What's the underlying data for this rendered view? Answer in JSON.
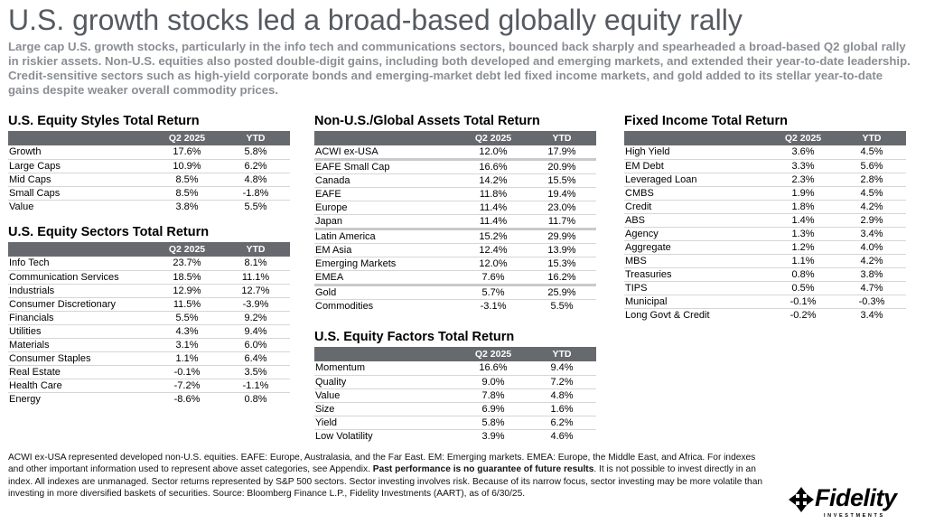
{
  "title": "U.S. growth stocks led a broad-based globally equity rally",
  "subtitle": "Large cap U.S. growth stocks, particularly in the info tech and communications sectors, bounced back sharply and spearheaded a broad-based Q2 global rally in riskier assets. Non-U.S. equities also posted double-digit gains, including both developed and emerging markets, and extended their year-to-date leadership. Credit-sensitive sectors such as high-yield corporate bonds and emerging-market debt led fixed income markets, and gold added to its stellar year-to-date gains despite weaker overall commodity prices.",
  "columns": {
    "q2": "Q2 2025",
    "ytd": "YTD"
  },
  "styles": {
    "title": "U.S. Equity Styles Total Return",
    "rows": [
      {
        "name": "Growth",
        "q2": "17.6%",
        "ytd": "5.8%"
      },
      {
        "name": "Large Caps",
        "q2": "10.9%",
        "ytd": "6.2%"
      },
      {
        "name": "Mid Caps",
        "q2": "8.5%",
        "ytd": "4.8%"
      },
      {
        "name": "Small Caps",
        "q2": "8.5%",
        "ytd": "-1.8%"
      },
      {
        "name": "Value",
        "q2": "3.8%",
        "ytd": "5.5%"
      }
    ]
  },
  "sectors": {
    "title": "U.S. Equity Sectors Total Return",
    "rows": [
      {
        "name": "Info Tech",
        "q2": "23.7%",
        "ytd": "8.1%"
      },
      {
        "name": "Communication Services",
        "q2": "18.5%",
        "ytd": "11.1%"
      },
      {
        "name": "Industrials",
        "q2": "12.9%",
        "ytd": "12.7%"
      },
      {
        "name": "Consumer Discretionary",
        "q2": "11.5%",
        "ytd": "-3.9%"
      },
      {
        "name": "Financials",
        "q2": "5.5%",
        "ytd": "9.2%"
      },
      {
        "name": "Utilities",
        "q2": "4.3%",
        "ytd": "9.4%"
      },
      {
        "name": "Materials",
        "q2": "3.1%",
        "ytd": "6.0%"
      },
      {
        "name": "Consumer Staples",
        "q2": "1.1%",
        "ytd": "6.4%"
      },
      {
        "name": "Real Estate",
        "q2": "-0.1%",
        "ytd": "3.5%"
      },
      {
        "name": "Health Care",
        "q2": "-7.2%",
        "ytd": "-1.1%"
      },
      {
        "name": "Energy",
        "q2": "-8.6%",
        "ytd": "0.8%"
      }
    ]
  },
  "global": {
    "title": "Non-U.S./Global Assets Total Return",
    "rows": [
      {
        "name": "ACWI ex-USA",
        "q2": "12.0%",
        "ytd": "17.9%",
        "sep": true
      },
      {
        "name": "EAFE Small Cap",
        "q2": "16.6%",
        "ytd": "20.9%"
      },
      {
        "name": "Canada",
        "q2": "14.2%",
        "ytd": "15.5%"
      },
      {
        "name": "EAFE",
        "q2": "11.8%",
        "ytd": "19.4%"
      },
      {
        "name": "Europe",
        "q2": "11.4%",
        "ytd": "23.0%"
      },
      {
        "name": "Japan",
        "q2": "11.4%",
        "ytd": "11.7%",
        "sep": true
      },
      {
        "name": "Latin America",
        "q2": "15.2%",
        "ytd": "29.9%"
      },
      {
        "name": "EM Asia",
        "q2": "12.4%",
        "ytd": "13.9%"
      },
      {
        "name": "Emerging Markets",
        "q2": "12.0%",
        "ytd": "15.3%"
      },
      {
        "name": "EMEA",
        "q2": "7.6%",
        "ytd": "16.2%",
        "sep": true
      },
      {
        "name": "Gold",
        "q2": "5.7%",
        "ytd": "25.9%"
      },
      {
        "name": "Commodities",
        "q2": "-3.1%",
        "ytd": "5.5%"
      }
    ]
  },
  "factors": {
    "title": "U.S. Equity Factors Total Return",
    "rows": [
      {
        "name": "Momentum",
        "q2": "16.6%",
        "ytd": "9.4%"
      },
      {
        "name": "Quality",
        "q2": "9.0%",
        "ytd": "7.2%"
      },
      {
        "name": "Value",
        "q2": "7.8%",
        "ytd": "4.8%"
      },
      {
        "name": "Size",
        "q2": "6.9%",
        "ytd": "1.6%"
      },
      {
        "name": "Yield",
        "q2": "5.8%",
        "ytd": "6.2%"
      },
      {
        "name": "Low Volatility",
        "q2": "3.9%",
        "ytd": "4.6%"
      }
    ]
  },
  "fixed": {
    "title": "Fixed Income Total Return",
    "rows": [
      {
        "name": "High Yield",
        "q2": "3.6%",
        "ytd": "4.5%"
      },
      {
        "name": "EM Debt",
        "q2": "3.3%",
        "ytd": "5.6%"
      },
      {
        "name": "Leveraged Loan",
        "q2": "2.3%",
        "ytd": "2.8%"
      },
      {
        "name": "CMBS",
        "q2": "1.9%",
        "ytd": "4.5%"
      },
      {
        "name": "Credit",
        "q2": "1.8%",
        "ytd": "4.2%"
      },
      {
        "name": "ABS",
        "q2": "1.4%",
        "ytd": "2.9%"
      },
      {
        "name": "Agency",
        "q2": "1.3%",
        "ytd": "3.4%"
      },
      {
        "name": "Aggregate",
        "q2": "1.2%",
        "ytd": "4.0%"
      },
      {
        "name": "MBS",
        "q2": "1.1%",
        "ytd": "4.2%"
      },
      {
        "name": "Treasuries",
        "q2": "0.8%",
        "ytd": "3.8%"
      },
      {
        "name": "TIPS",
        "q2": "0.5%",
        "ytd": "4.7%"
      },
      {
        "name": "Municipal",
        "q2": "-0.1%",
        "ytd": "-0.3%"
      },
      {
        "name": "Long Govt & Credit",
        "q2": "-0.2%",
        "ytd": "3.4%"
      }
    ]
  },
  "footnote": {
    "part1": "ACWI ex-USA represented developed non-U.S. equities. EAFE: Europe, Australasia, and the Far East. EM: Emerging markets. EMEA: Europe, the Middle East, and Africa. For indexes and other important information used to represent above asset categories, see Appendix. ",
    "bold": "Past performance is no guarantee of future results",
    "part2": ". It is not possible to invest directly in an index. All indexes are unmanaged. Sector returns represented by S&P 500 sectors. Sector investing involves risk. Because of its narrow focus, sector investing may be more volatile than investing in more diversified baskets of securities. Source: Bloomberg Finance L.P., Fidelity Investments (AART), as of 6/30/25."
  },
  "logo": {
    "word": "Fidelity",
    "sub": "INVESTMENTS",
    "icon": "fidelity-arrow-icon"
  }
}
